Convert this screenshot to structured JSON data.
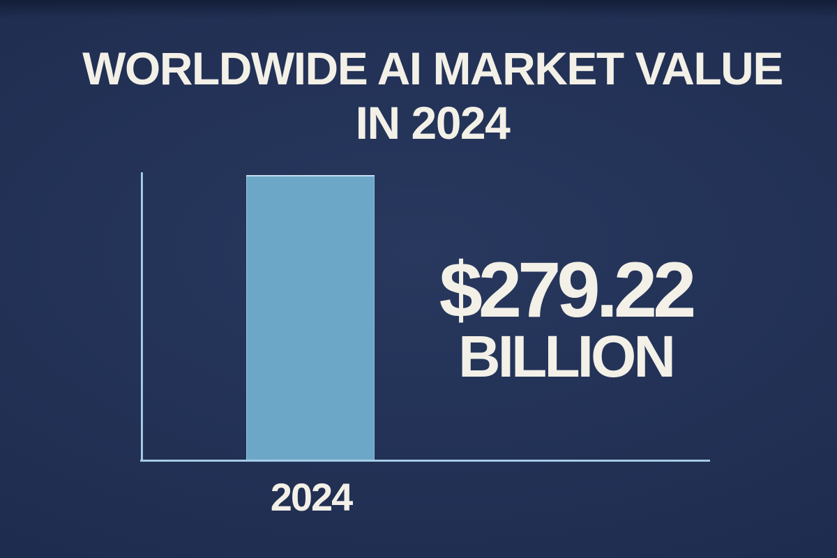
{
  "title": {
    "line1": "WORLDWIDE AI MARKET VALUE",
    "line2": "IN 2024"
  },
  "value_callout": {
    "amount": "$279.22",
    "unit": "BILLION"
  },
  "chart_data": {
    "type": "bar",
    "title": "Worldwide AI market value in 2024",
    "categories": [
      "2024"
    ],
    "values": [
      279.22
    ],
    "value_unit": "USD billion",
    "xlabel": "",
    "ylabel": "",
    "ylim": [
      0,
      283
    ],
    "grid": false,
    "legend": false,
    "annotations": [
      "$279.22 BILLION"
    ],
    "bar_color": "#6da7c8"
  },
  "colors": {
    "background": "#1f2d50",
    "bar": "#6da7c8",
    "axis": "#a4cbe6",
    "text": "#f3f0e7"
  }
}
